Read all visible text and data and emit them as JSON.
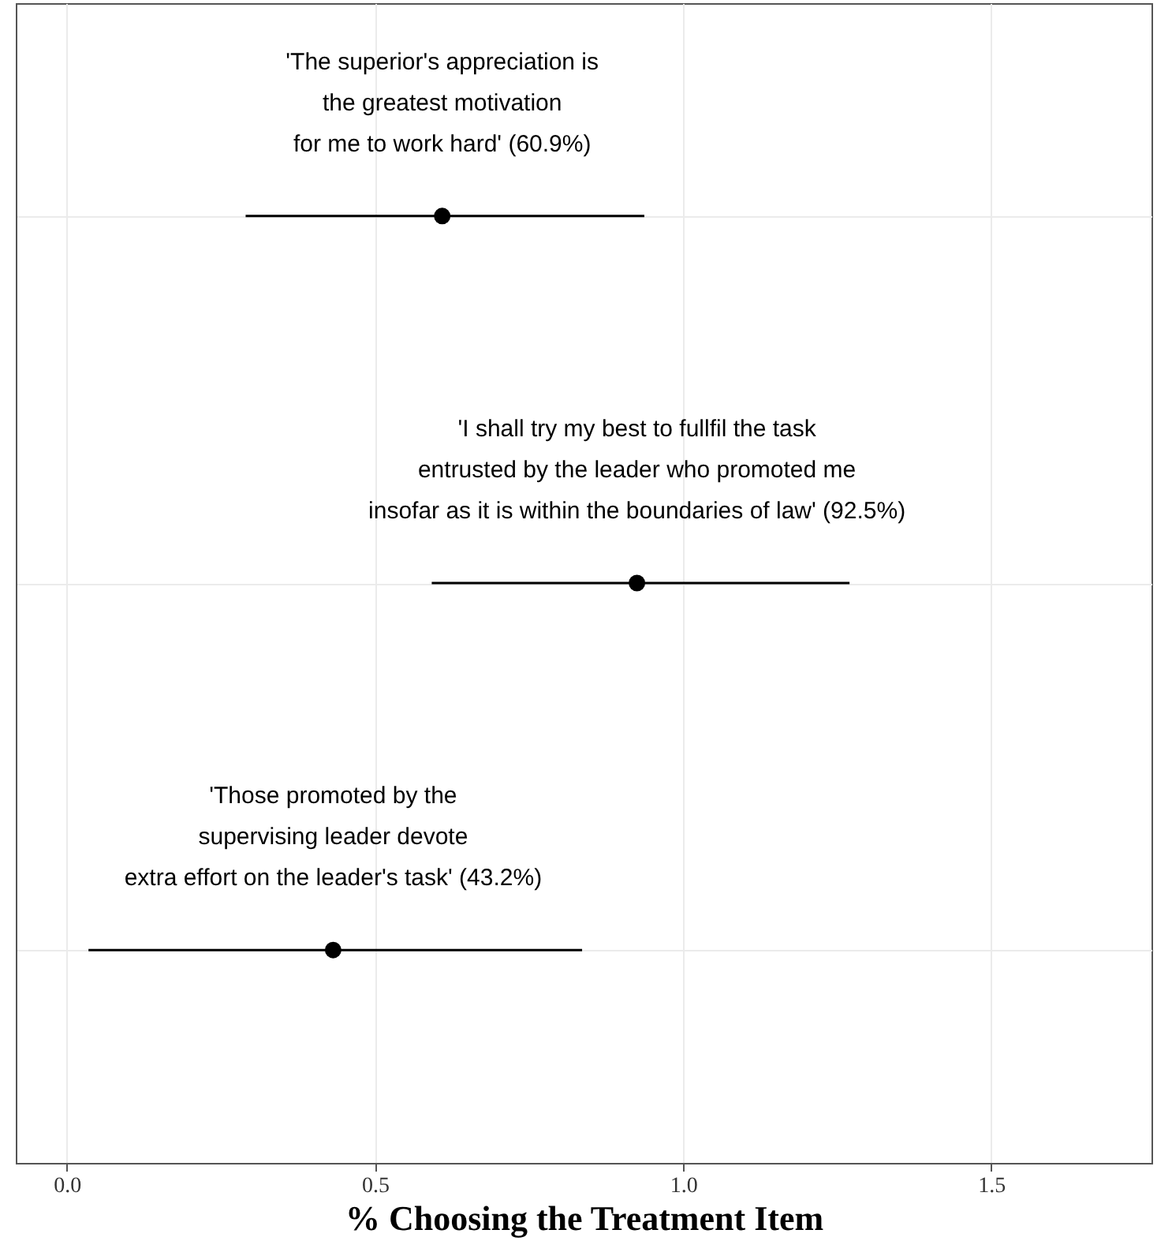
{
  "chart_data": {
    "type": "scatter",
    "orientation": "horizontal",
    "marker": "circle",
    "color": "#000000",
    "xlabel": "% Choosing the Treatment Item",
    "categories": [
      null,
      null,
      null
    ],
    "values": [
      0.609,
      0.925,
      0.432
    ],
    "errors": [
      [
        0.29,
        0.937
      ],
      [
        0.592,
        1.27
      ],
      [
        0.035,
        0.836
      ]
    ],
    "annotations": [
      "'The superior's appreciation is\nthe greatest motivation\nfor me to work hard' (60.9%)",
      "'I shall try my best to fullfil the task\nentrusted by the leader who promoted me\ninsofar as it is within the boundaries of law' (92.5%)",
      "'Those promoted by the\nsupervising leader devote\nextra effort on the leader's task' (43.2%)"
    ],
    "xlim": [
      -0.083,
      1.76
    ],
    "xticks": [
      {
        "value": 0,
        "label": "0.0"
      },
      "0.5",
      {
        "value": 1,
        "label": "1.0"
      },
      "1.5"
    ],
    "grid": true,
    "tick_labels": "x"
  }
}
